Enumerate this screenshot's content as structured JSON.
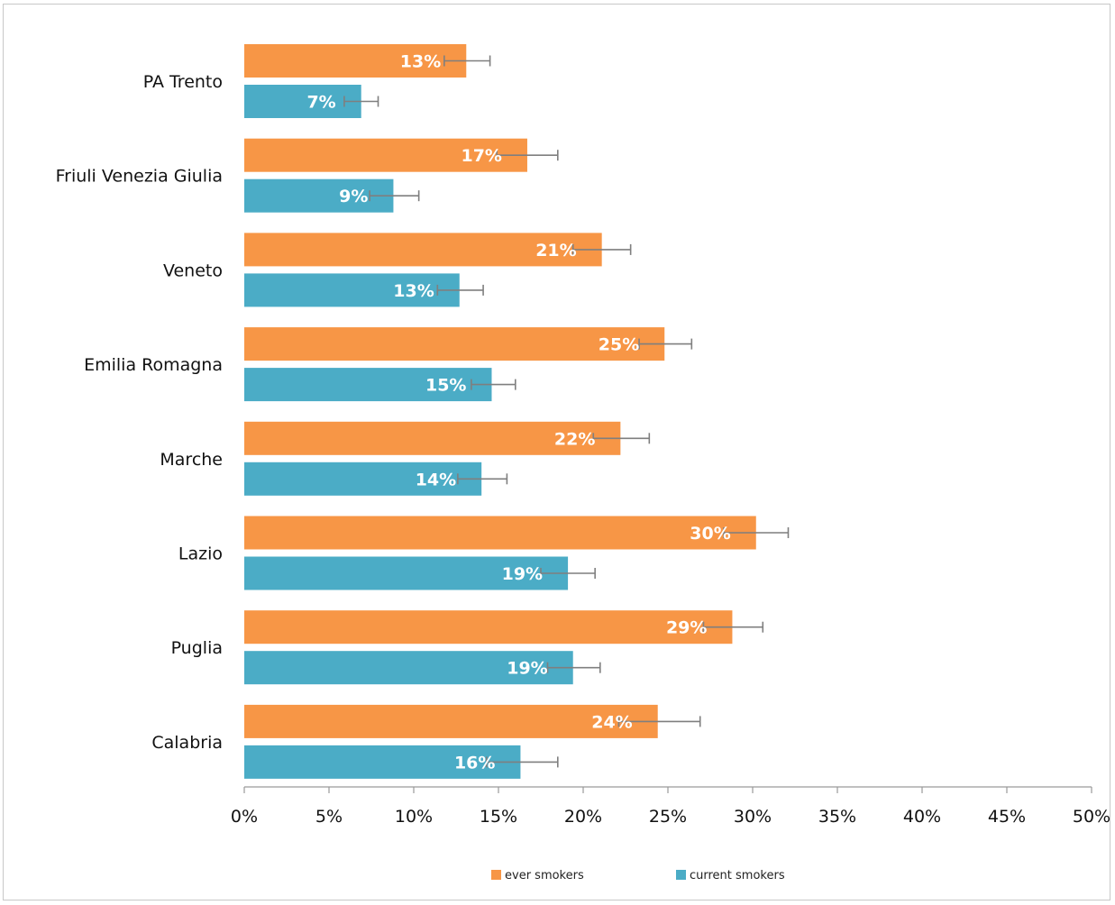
{
  "chart_data": {
    "type": "bar",
    "orientation": "horizontal",
    "categories": [
      "PA Trento",
      "Friuli Venezia Giulia",
      "Veneto",
      "Emilia Romagna",
      "Marche",
      "Lazio",
      "Puglia",
      "Calabria"
    ],
    "series": [
      {
        "name": "ever smokers",
        "color": "#f79646",
        "values": [
          13.1,
          16.7,
          21.1,
          24.8,
          22.2,
          30.2,
          28.8,
          24.4
        ],
        "labels": [
          "13%",
          "17%",
          "21%",
          "25%",
          "22%",
          "30%",
          "29%",
          "24%"
        ],
        "error_low": [
          11.8,
          14.9,
          19.4,
          23.3,
          20.6,
          28.3,
          27.1,
          22.1
        ],
        "error_high": [
          14.5,
          18.5,
          22.8,
          26.4,
          23.9,
          32.1,
          30.6,
          26.9
        ]
      },
      {
        "name": "current smokers",
        "color": "#4bacc6",
        "values": [
          6.9,
          8.8,
          12.7,
          14.6,
          14.0,
          19.1,
          19.4,
          16.3
        ],
        "labels": [
          "7%",
          "9%",
          "13%",
          "15%",
          "14%",
          "19%",
          "19%",
          "16%"
        ],
        "error_low": [
          5.9,
          7.4,
          11.4,
          13.4,
          12.6,
          17.5,
          17.9,
          14.3
        ],
        "error_high": [
          7.9,
          10.3,
          14.1,
          16.0,
          15.5,
          20.7,
          21.0,
          18.5
        ]
      }
    ],
    "xlim": [
      0,
      50
    ],
    "x_ticks": [
      0,
      5,
      10,
      15,
      20,
      25,
      30,
      35,
      40,
      45,
      50
    ],
    "x_tick_labels": [
      "0%",
      "5%",
      "10%",
      "15%",
      "20%",
      "25%",
      "30%",
      "35%",
      "40%",
      "45%",
      "50%"
    ],
    "title": "",
    "xlabel": "",
    "ylabel": "",
    "grid": false,
    "legend": "bottom",
    "error_bar_color": "#7f7f7f"
  }
}
